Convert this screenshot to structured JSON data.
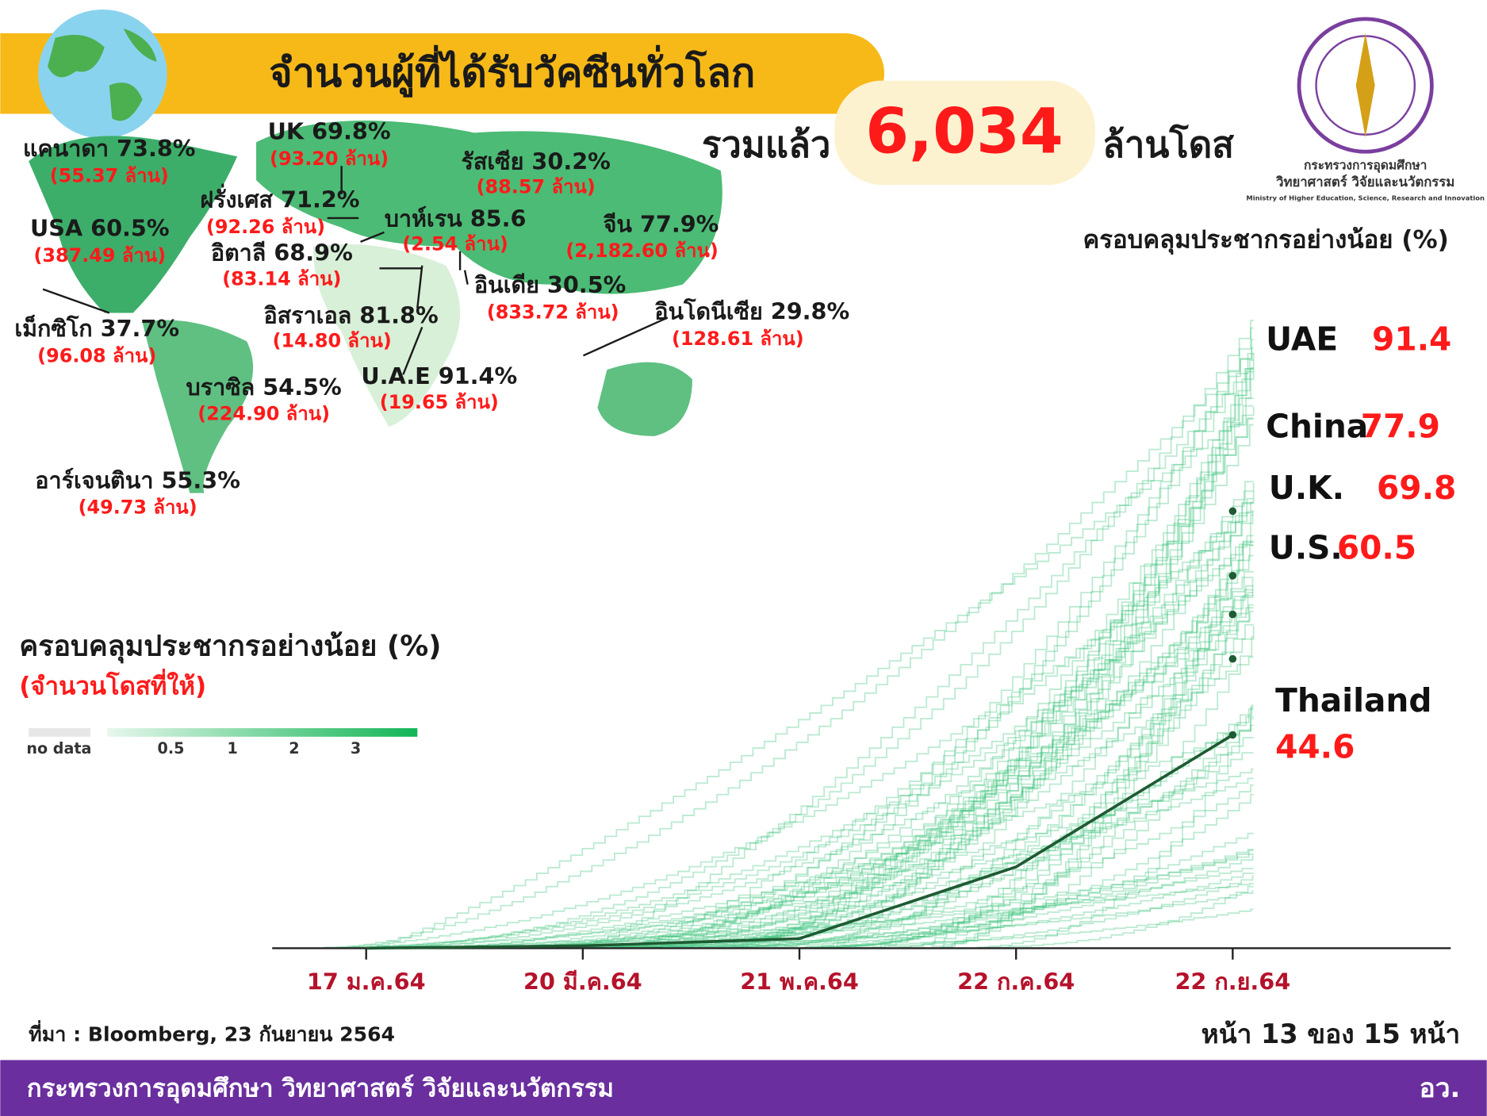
{
  "header": {
    "title": "จำนวนผู้ที่ได้รับวัคซีนทั่วโลก",
    "total_prefix": "รวมแล้ว",
    "total": "6,034",
    "total_suffix": "ล้านโดส"
  },
  "logo": {
    "line1": "กระทรวงการอุดมศึกษา",
    "line2": "วิทยาศาสตร์ วิจัยและนวัตกรรม",
    "line3": "Ministry of Higher Education, Science, Research and Innovation"
  },
  "map_labels": [
    {
      "label": "แคนาดา 73.8%",
      "doses": "(55.37 ล้าน)"
    },
    {
      "label": "UK 69.8%",
      "doses": "(93.20 ล้าน)"
    },
    {
      "label": "รัสเซีย 30.2%",
      "doses": "(88.57 ล้าน)"
    },
    {
      "label": "ฝรั่งเศส 71.2%",
      "doses": "(92.26 ล้าน)"
    },
    {
      "label": "USA 60.5%",
      "doses": "(387.49 ล้าน)"
    },
    {
      "label": "บาห์เรน 85.6",
      "doses": "(2.54 ล้าน)"
    },
    {
      "label": "จีน 77.9%",
      "doses": "(2,182.60 ล้าน)"
    },
    {
      "label": "อิตาลี 68.9%",
      "doses": "(83.14 ล้าน)"
    },
    {
      "label": "อินเดีย 30.5%",
      "doses": "(833.72 ล้าน)"
    },
    {
      "label": "อิสราเอล 81.8%",
      "doses": "(14.80 ล้าน)"
    },
    {
      "label": "อินโดนีเซีย 29.8%",
      "doses": "(128.61 ล้าน)"
    },
    {
      "label": "เม็กซิโก 37.7%",
      "doses": "(96.08 ล้าน)"
    },
    {
      "label": "U.A.E 91.4%",
      "doses": "(19.65 ล้าน)"
    },
    {
      "label": "บราซิล 54.5%",
      "doses": "(224.90 ล้าน)"
    },
    {
      "label": "อาร์เจนตินา 55.3%",
      "doses": "(49.73 ล้าน)"
    }
  ],
  "legend": {
    "title": "ครอบคลุมประชากรอย่างน้อย (%)",
    "subtitle": "(จำนวนโดสที่ให้)",
    "no_data": "no data",
    "ticks": [
      0.5,
      1,
      2,
      3
    ]
  },
  "chart_data": {
    "type": "line",
    "title": "ครอบคลุมประชากรอย่างน้อย (%)",
    "x": [
      "17 ม.ค.64",
      "20 มี.ค.64",
      "21 พ.ค.64",
      "22 ก.ค.64",
      "22 ก.ย.64"
    ],
    "ylim": [
      0,
      140
    ],
    "series": [
      {
        "name": "UAE",
        "color": "#000000",
        "values": [
          null,
          null,
          null,
          null,
          91.4
        ]
      },
      {
        "name": "China",
        "color": "#000000",
        "values": [
          null,
          null,
          null,
          null,
          77.9
        ]
      },
      {
        "name": "U.K.",
        "color": "#000000",
        "values": [
          null,
          null,
          null,
          null,
          69.8
        ]
      },
      {
        "name": "U.S.",
        "color": "#000000",
        "values": [
          null,
          null,
          null,
          null,
          60.5
        ]
      },
      {
        "name": "Thailand",
        "color": "#1e5a32",
        "values": [
          0,
          0.5,
          2,
          17,
          44.6
        ]
      }
    ]
  },
  "footer": {
    "source": "ที่มา : Bloomberg, 23 กันยายน 2564",
    "page": "หน้า 13 ของ 15 หน้า",
    "ministry": "กระทรวงการอุดมศึกษา วิทยาศาสตร์ วิจัยและนวัตกรรม",
    "short": "อว."
  }
}
